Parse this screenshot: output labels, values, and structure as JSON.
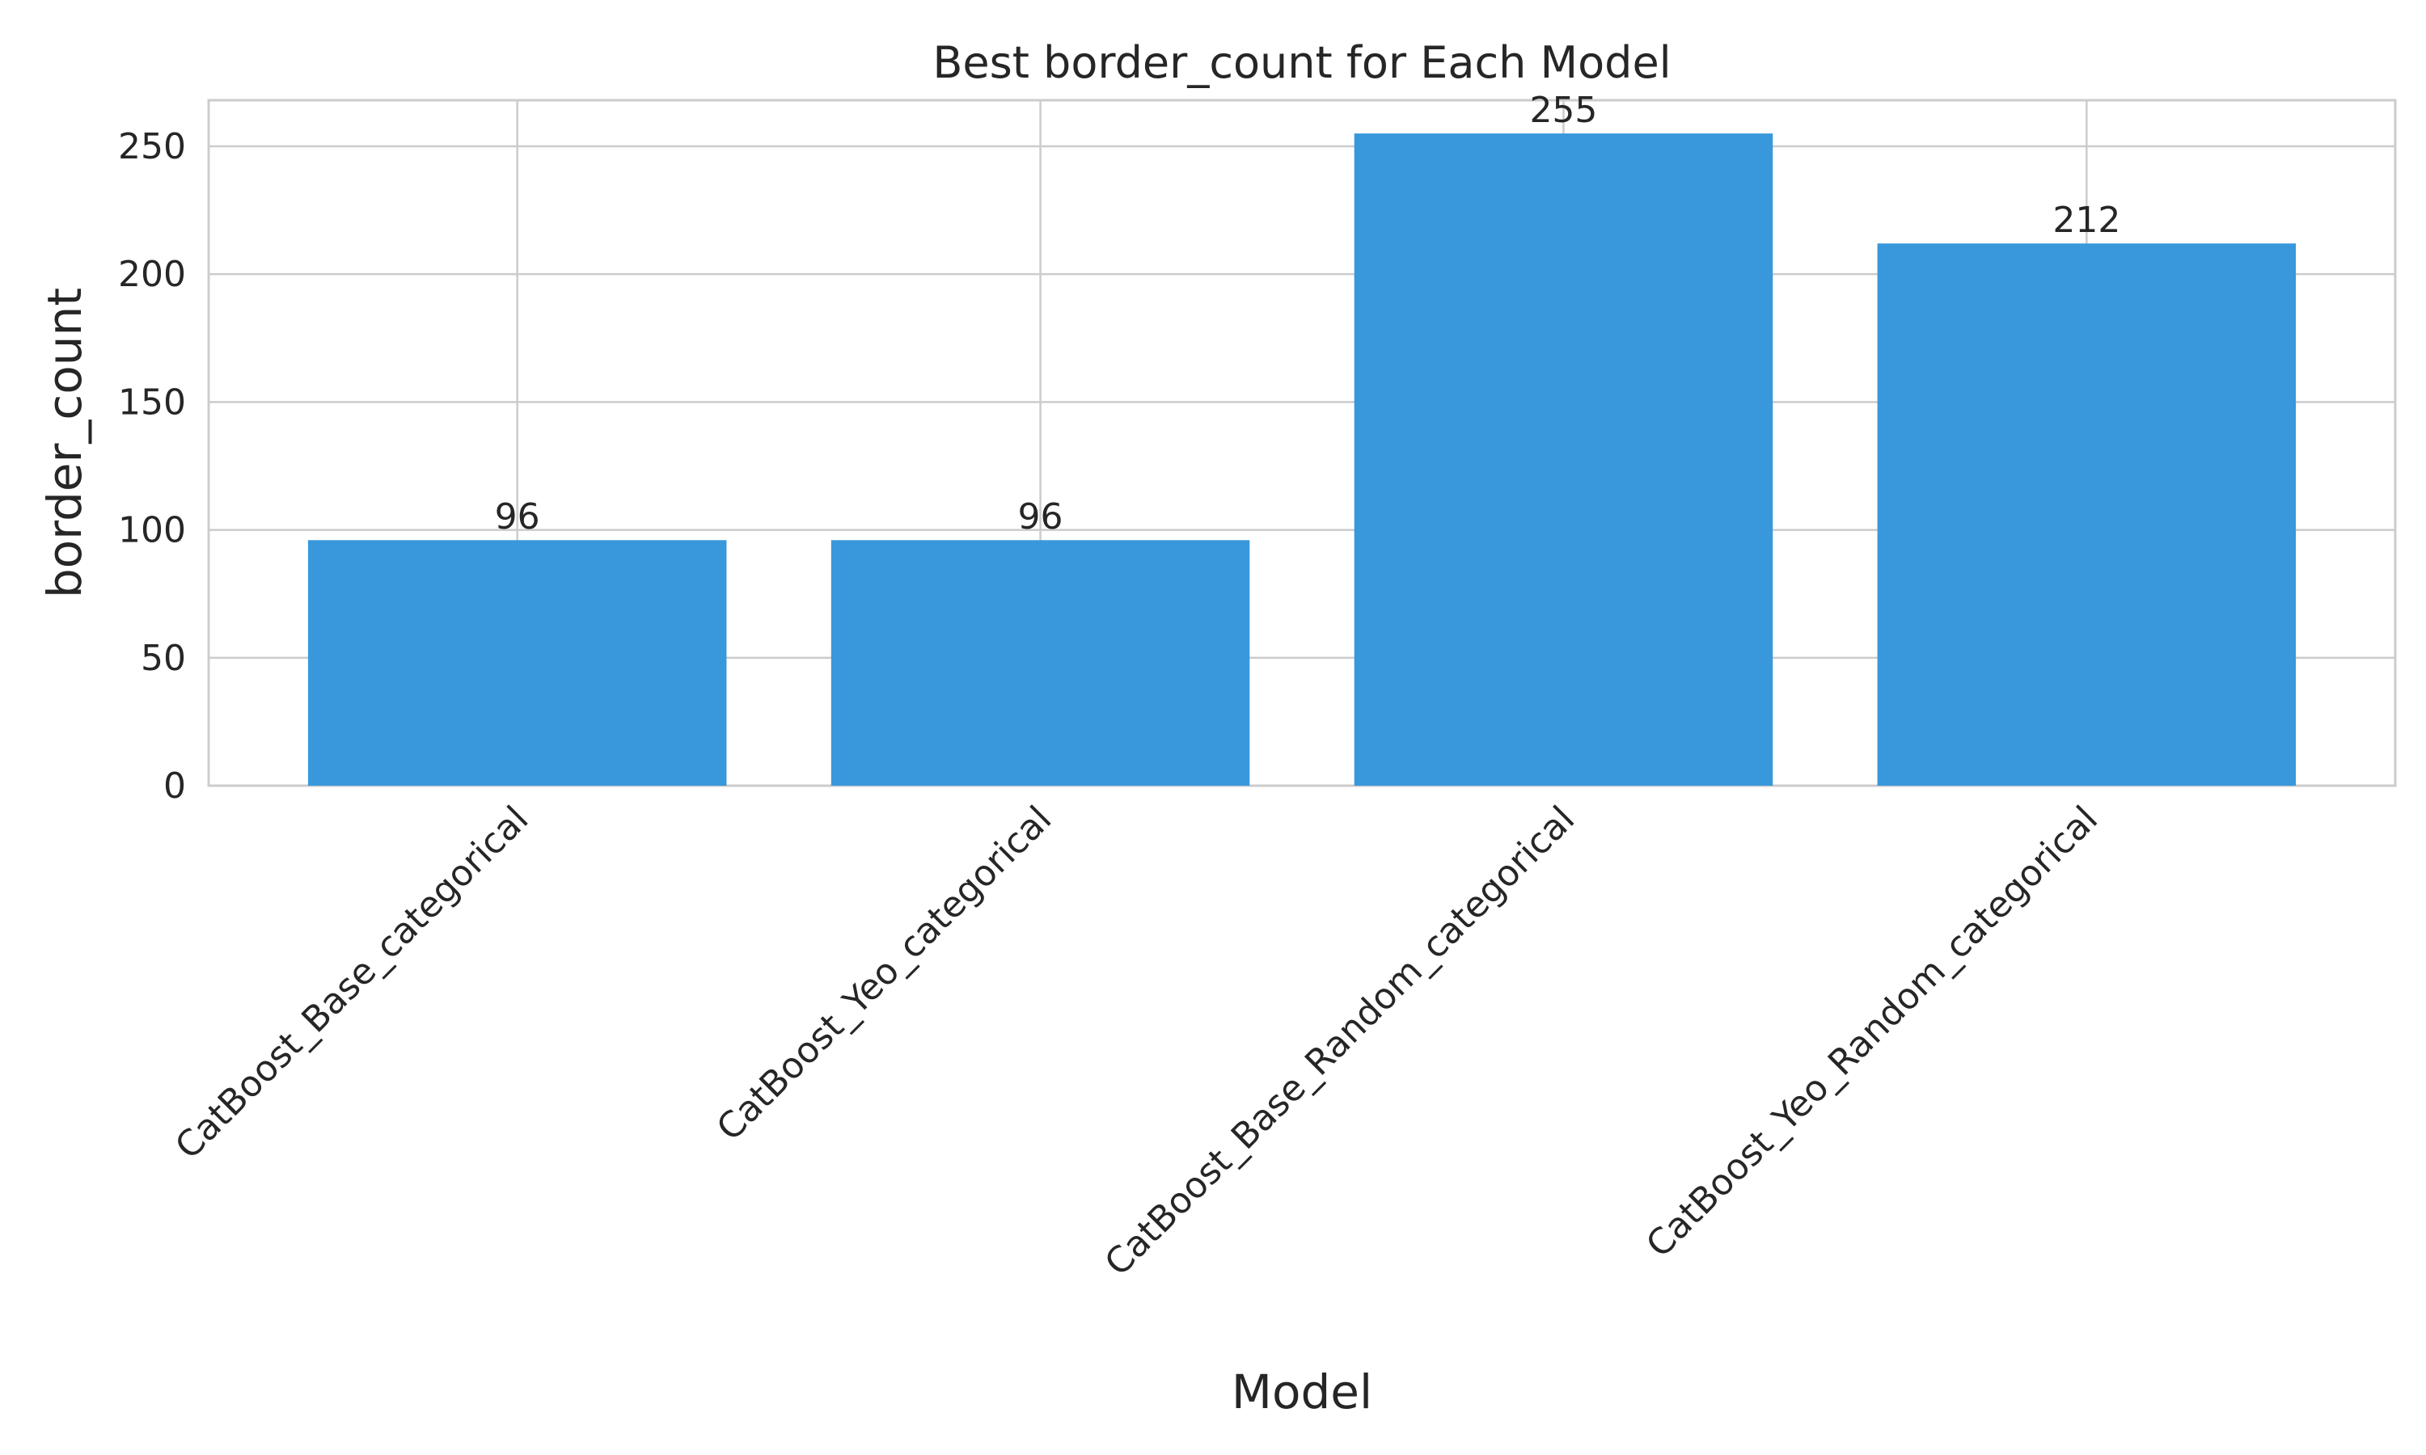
{
  "chart_data": {
    "type": "bar",
    "title": "Best border_count for Each Model",
    "xlabel": "Model",
    "ylabel": "border_count",
    "categories": [
      "CatBoost_Base_categorical",
      "CatBoost_Yeo_categorical",
      "CatBoost_Base_Random_categorical",
      "CatBoost_Yeo_Random_categorical"
    ],
    "values": [
      96,
      96,
      255,
      212
    ],
    "data_labels": [
      "96",
      "96",
      "255",
      "212"
    ],
    "ylim": [
      0,
      268
    ],
    "yticks": [
      0,
      50,
      100,
      150,
      200,
      250
    ],
    "ytick_labels": [
      "0",
      "50",
      "100",
      "150",
      "200",
      "250"
    ],
    "grid": true,
    "bar_color": "#3898db",
    "grid_color": "#cccccc",
    "text_color": "#262626"
  }
}
